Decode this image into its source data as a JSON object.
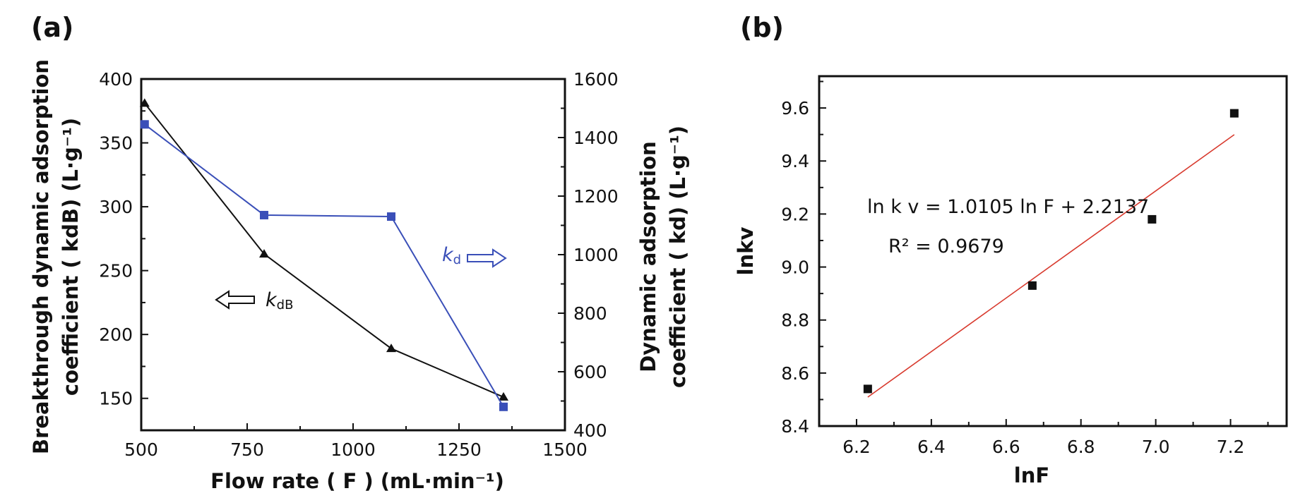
{
  "panels": {
    "a": {
      "label": "(a)"
    },
    "b": {
      "label": "(b)"
    }
  },
  "colors": {
    "black_series": "#111111",
    "blue_series": "#3a4fb8",
    "fit_line": "#d83a2e"
  },
  "chart_data": [
    {
      "id": "a",
      "type": "line",
      "xlabel": "Flow rate ( F ) (mL·min⁻¹)",
      "ylabel_left_line1": "Breakthrough dynamic adsorption",
      "ylabel_left_line2": "coefficient ( kdB) (L·g⁻¹)",
      "ylabel_right_line1": "Dynamic adsorption",
      "ylabel_right_line2": "coefficient ( kd) (L·g⁻¹)",
      "xlim": [
        500,
        1500
      ],
      "xticks": [
        500,
        750,
        1000,
        1250,
        1500
      ],
      "ylim_left": [
        125,
        400
      ],
      "yticks_left": [
        150,
        200,
        250,
        300,
        350,
        400
      ],
      "ylim_right": [
        400,
        1600
      ],
      "yticks_right": [
        400,
        600,
        800,
        1000,
        1200,
        1400,
        1600
      ],
      "series": [
        {
          "name": "kdB",
          "axis": "left",
          "marker": "triangle",
          "x": [
            508,
            790,
            1090,
            1355
          ],
          "y": [
            381,
            263,
            189,
            151
          ]
        },
        {
          "name": "kd",
          "axis": "right",
          "marker": "square",
          "x": [
            508,
            790,
            1090,
            1355
          ],
          "y": [
            1445,
            1135,
            1130,
            480
          ]
        }
      ],
      "annotations": {
        "kdB_label_main": "k",
        "kdB_label_sub": "dB",
        "kd_label_main": "k",
        "kd_label_sub": "d"
      }
    },
    {
      "id": "b",
      "type": "scatter",
      "xlabel": "lnF",
      "ylabel": "lnkv",
      "xlim": [
        6.1,
        7.35
      ],
      "xticks": [
        6.2,
        6.4,
        6.6,
        6.8,
        7.0,
        7.2
      ],
      "ylim": [
        8.4,
        9.72
      ],
      "yticks": [
        8.4,
        8.6,
        8.8,
        9.0,
        9.2,
        9.4,
        9.6
      ],
      "points": {
        "x": [
          6.23,
          6.67,
          6.99,
          7.21
        ],
        "y": [
          8.54,
          8.93,
          9.18,
          9.58
        ]
      },
      "fit": {
        "slope": 1.0105,
        "intercept": 2.2137,
        "x_range": [
          6.23,
          7.21
        ]
      },
      "equation_text": "ln k v = 1.0105 ln F + 2.2137",
      "r2_text": "R² = 0.9679"
    }
  ]
}
